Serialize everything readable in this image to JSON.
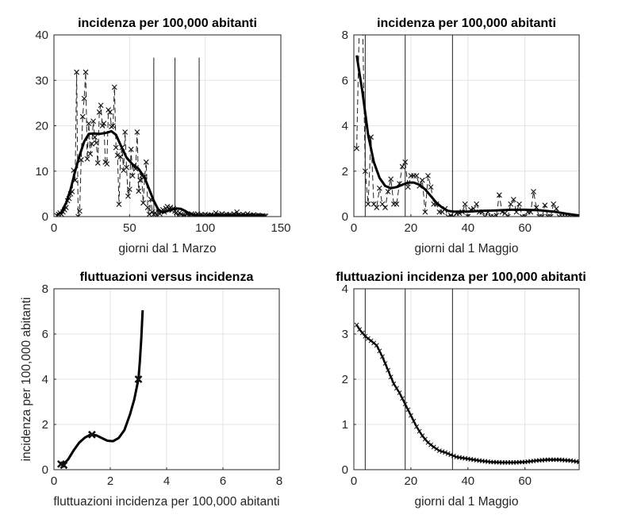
{
  "chart_data": [
    {
      "type": "line",
      "title": "incidenza per 100,000 abitanti",
      "xlabel": "giorni dal 1 Marzo",
      "ylabel": "",
      "xlim": [
        0,
        150
      ],
      "ylim": [
        0,
        40
      ],
      "xticks": [
        0,
        50,
        100,
        150
      ],
      "yticks": [
        0,
        10,
        20,
        30,
        40
      ],
      "grid": true,
      "vlines": {
        "x": [
          66,
          80,
          96
        ],
        "ymax": 35
      },
      "series": [
        {
          "name": "raw",
          "style": "dashed-markers",
          "x_start": 2,
          "y": [
            0.2,
            0.5,
            0.8,
            0.5,
            1,
            1.5,
            2,
            3.5,
            4,
            5,
            5.5,
            10.2,
            8,
            31.8,
            0,
            1.2,
            12.5,
            22,
            26,
            31.8,
            12.7,
            20.5,
            13.8,
            16,
            21,
            17.5,
            16.2,
            11.8,
            23,
            24.5,
            20,
            20.5,
            12,
            11.6,
            23.5,
            23,
            19.8,
            20,
            28.5,
            15.2,
            13.5,
            2.7,
            13.2,
            15.2,
            10.2,
            18.6,
            10.8,
            4.5,
            6,
            14.8,
            9,
            11.3,
            10.5,
            18.6,
            5.6,
            8,
            9,
            3,
            8.8,
            12,
            2,
            0.5,
            3.8,
            1,
            0.5,
            0.8,
            0.3,
            1,
            0.6,
            1.2,
            1.5,
            1,
            1.8,
            2.2,
            1.6,
            2,
            1.4,
            1.8,
            1.2,
            0.9,
            0.2,
            0.8,
            0.5,
            0.3,
            0.2,
            0.2,
            0.5,
            0.3,
            0.2,
            0.6,
            0.4,
            0.2,
            0.3,
            0.6,
            0.2,
            0.4,
            0.3,
            0.2,
            0.5,
            0.2,
            0.3,
            0.2,
            0.4,
            0.2,
            0.3,
            0.8,
            0.2,
            0.4,
            0.3,
            0.6,
            0.2,
            0.3,
            0.5,
            0.2,
            0.4,
            0.3,
            0.2,
            0.6,
            0.3,
            1,
            0.4,
            0.2,
            0.3,
            0.5,
            0.2,
            0.3,
            0.6,
            0.2,
            0.3,
            0.2,
            0.4,
            0.2,
            0.2,
            0.3,
            0.2,
            0.1,
            0.2,
            0.1,
            0.1
          ]
        },
        {
          "name": "smoothed",
          "style": "thick",
          "x": [
            2,
            5,
            8,
            11,
            14,
            17,
            20,
            23,
            26,
            30,
            34,
            38,
            41,
            44,
            48,
            52,
            56,
            60,
            63,
            66,
            69,
            72,
            75,
            78,
            81,
            84,
            87,
            90,
            93,
            96,
            100,
            110,
            120,
            130,
            140
          ],
          "y": [
            0.3,
            1,
            3,
            6,
            10,
            13.5,
            16.5,
            18.2,
            18.3,
            18.2,
            18.4,
            18.8,
            18,
            15.8,
            13,
            11.5,
            10.5,
            8.5,
            6,
            3.5,
            1.5,
            0.9,
            1.2,
            1.6,
            1.8,
            1.7,
            1.2,
            0.6,
            0.3,
            0.2,
            0.2,
            0.3,
            0.3,
            0.3,
            0.2
          ]
        }
      ]
    },
    {
      "type": "line",
      "title": "incidenza per 100,000 abitanti",
      "xlabel": "giorni dal 1 Maggio",
      "ylabel": "",
      "xlim": [
        0,
        79
      ],
      "ylim": [
        0,
        8
      ],
      "xticks": [
        0,
        20,
        40,
        60
      ],
      "yticks": [
        0,
        2,
        4,
        6,
        8
      ],
      "grid": true,
      "vlines": {
        "x": [
          4,
          18,
          34.6
        ],
        "ymax": 8
      },
      "series": [
        {
          "name": "raw",
          "style": "dashed-markers",
          "x_start": 1,
          "y": [
            3,
            9,
            9,
            2,
            0.55,
            3.5,
            0.55,
            0.4,
            1.25,
            0.55,
            0.4,
            1.1,
            1.65,
            0.55,
            0.55,
            1.45,
            2.2,
            2.4,
            1.3,
            1.8,
            1.8,
            1.8,
            1.35,
            1.6,
            0.2,
            1.8,
            1.3,
            0.55,
            0.55,
            0.2,
            0.2,
            0.35,
            0,
            0.05,
            0,
            0.15,
            0.15,
            0.2,
            0.55,
            0,
            0.3,
            0.35,
            0.55,
            0.2,
            0.2,
            0,
            0.2,
            0,
            0,
            0.05,
            0.95,
            0.2,
            0.15,
            0,
            0.55,
            0.75,
            0.2,
            0.55,
            0,
            0,
            0.2,
            0.2,
            1.1,
            0.4,
            0,
            0,
            0.5,
            0,
            0,
            0.55,
            0.35,
            0,
            0,
            0,
            0,
            0,
            0,
            0,
            0
          ]
        },
        {
          "name": "smoothed",
          "style": "thick",
          "x": [
            1,
            3,
            5,
            7,
            9,
            11,
            13,
            15,
            17,
            19,
            21,
            23,
            25,
            27,
            29,
            31,
            33,
            35,
            40,
            45,
            50,
            55,
            60,
            65,
            70,
            75,
            79
          ],
          "y": [
            7.1,
            5.5,
            3.6,
            2.4,
            1.7,
            1.35,
            1.25,
            1.3,
            1.4,
            1.5,
            1.5,
            1.4,
            1.2,
            0.9,
            0.6,
            0.4,
            0.25,
            0.22,
            0.22,
            0.25,
            0.27,
            0.3,
            0.3,
            0.28,
            0.22,
            0.12,
            0.05
          ]
        }
      ]
    },
    {
      "type": "line",
      "title": "fluttuazioni versus incidenza",
      "xlabel": "fluttuazioni incidenza per 100,000 abitanti",
      "ylabel": "incidenza per 100,000 abitanti",
      "xlim": [
        0,
        8
      ],
      "ylim": [
        0,
        8
      ],
      "xticks": [
        0,
        2,
        4,
        6,
        8
      ],
      "yticks": [
        0,
        2,
        4,
        6,
        8
      ],
      "grid": true,
      "series": [
        {
          "name": "curve",
          "style": "thick",
          "x": [
            0.3,
            0.5,
            0.7,
            0.9,
            1.1,
            1.3,
            1.5,
            1.7,
            1.9,
            2.1,
            2.3,
            2.5,
            2.7,
            2.85,
            2.95,
            3.0,
            3.05,
            3.1,
            3.15
          ],
          "y": [
            0.2,
            0.45,
            0.85,
            1.2,
            1.42,
            1.55,
            1.52,
            1.4,
            1.28,
            1.26,
            1.4,
            1.75,
            2.45,
            3.1,
            3.7,
            4.0,
            4.8,
            5.8,
            7.05
          ]
        },
        {
          "name": "points",
          "style": "bold-markers",
          "x": [
            0.25,
            0.35,
            1.35,
            3.0
          ],
          "y": [
            0.25,
            0.2,
            1.55,
            4.0
          ]
        }
      ]
    },
    {
      "type": "line",
      "title": "fluttuazioni incidenza per 100,000 abitanti",
      "xlabel": "giorni dal 1 Maggio",
      "ylabel": "",
      "xlim": [
        0,
        79
      ],
      "ylim": [
        0,
        4
      ],
      "xticks": [
        0,
        20,
        40,
        60
      ],
      "yticks": [
        0,
        1,
        2,
        3,
        4
      ],
      "grid": true,
      "vlines": {
        "x": [
          4,
          18,
          34.6
        ],
        "ymax": 4
      },
      "series": [
        {
          "name": "fluctuations",
          "style": "thick-markers",
          "x": [
            1,
            2,
            4,
            6,
            8,
            10,
            12,
            14,
            16,
            18,
            20,
            22,
            24,
            26,
            28,
            30,
            32,
            34,
            36,
            38,
            40,
            44,
            48,
            52,
            56,
            60,
            64,
            68,
            72,
            76,
            79
          ],
          "y": [
            3.2,
            3.1,
            2.95,
            2.85,
            2.75,
            2.5,
            2.2,
            1.9,
            1.7,
            1.45,
            1.2,
            0.95,
            0.75,
            0.6,
            0.5,
            0.42,
            0.38,
            0.33,
            0.28,
            0.26,
            0.24,
            0.2,
            0.17,
            0.16,
            0.16,
            0.17,
            0.2,
            0.22,
            0.22,
            0.2,
            0.17
          ]
        }
      ]
    }
  ]
}
